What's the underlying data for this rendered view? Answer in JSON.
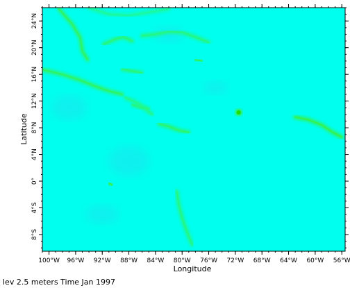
{
  "figure": {
    "xlabel": "Longitude",
    "ylabel": "Latitude",
    "caption": "lev 2.5 meters Time Jan 1997"
  },
  "chart_data": {
    "type": "heatmap",
    "xlabel": "Longitude",
    "ylabel": "Latitude",
    "xlim": [
      -101,
      -55.5
    ],
    "ylim": [
      -10.5,
      26
    ],
    "x_ticks": [
      {
        "value": -100,
        "label": "100°W"
      },
      {
        "value": -96,
        "label": "96°W"
      },
      {
        "value": -92,
        "label": "92°W"
      },
      {
        "value": -88,
        "label": "88°W"
      },
      {
        "value": -84,
        "label": "84°W"
      },
      {
        "value": -80,
        "label": "80°W"
      },
      {
        "value": -76,
        "label": "76°W"
      },
      {
        "value": -72,
        "label": "72°W"
      },
      {
        "value": -68,
        "label": "68°W"
      },
      {
        "value": -64,
        "label": "64°W"
      },
      {
        "value": -60,
        "label": "60°W"
      },
      {
        "value": -56,
        "label": "56°W"
      }
    ],
    "y_ticks": [
      {
        "value": -8,
        "label": "8°S"
      },
      {
        "value": -4,
        "label": "4°S"
      },
      {
        "value": 0,
        "label": "0°"
      },
      {
        "value": 4,
        "label": "4°N"
      },
      {
        "value": 8,
        "label": "8°N"
      },
      {
        "value": 12,
        "label": "12°N"
      },
      {
        "value": 16,
        "label": "16°N"
      },
      {
        "value": 20,
        "label": "20°N"
      },
      {
        "value": 24,
        "label": "24°N"
      }
    ],
    "colors": {
      "background": "#00ffee",
      "low": "#2ad7ee",
      "high": "#44ee22",
      "frame": "#000000"
    },
    "features": [
      {
        "name": "mexico-coast",
        "lon": [
          -98.5,
          -96.5,
          -95.3,
          -95.0,
          -94.2
        ],
        "lat": [
          25.8,
          23.5,
          21.5,
          19.5,
          18.2
        ],
        "intensity": 0.7
      },
      {
        "name": "yucatan-north",
        "lon": [
          -91.8,
          -90.0,
          -88.8,
          -87.5
        ],
        "lat": [
          20.5,
          21.3,
          21.6,
          21.0
        ],
        "intensity": 0.6
      },
      {
        "name": "cuba-jet",
        "lon": [
          -86.0,
          -84.0,
          -82.0,
          -80.0,
          -78.0,
          -76.0
        ],
        "lat": [
          21.8,
          22.0,
          22.4,
          22.3,
          21.6,
          20.8
        ],
        "intensity": 0.55
      },
      {
        "name": "gulf-current",
        "lon": [
          -94.0,
          -91.0,
          -88.0,
          -85.0,
          -82.0
        ],
        "lat": [
          26.0,
          25.0,
          24.8,
          25.3,
          25.8
        ],
        "intensity": 0.4
      },
      {
        "name": "honduras-shelf",
        "lon": [
          -89.0,
          -87.5,
          -86.0
        ],
        "lat": [
          16.8,
          16.5,
          16.2
        ],
        "intensity": 0.6
      },
      {
        "name": "pacific-tehuantepec",
        "lon": [
          -101.0,
          -98.0,
          -95.5,
          -93.0,
          -91.0,
          -89.0
        ],
        "lat": [
          16.7,
          16.0,
          15.2,
          14.2,
          13.5,
          13.0
        ],
        "intensity": 0.7
      },
      {
        "name": "nicaragua-coast",
        "lon": [
          -87.5,
          -86.0,
          -85.0
        ],
        "lat": [
          11.5,
          11.0,
          10.8
        ],
        "intensity": 0.6
      },
      {
        "name": "panama-bight",
        "lon": [
          -83.5,
          -82.0,
          -80.5,
          -79.0
        ],
        "lat": [
          8.6,
          8.2,
          7.6,
          7.3
        ],
        "intensity": 0.65
      },
      {
        "name": "jamaica-eddy",
        "lon": [
          -78.0,
          -77.0
        ],
        "lat": [
          18.2,
          18.0
        ],
        "intensity": 0.75
      },
      {
        "name": "hispaniola-spot",
        "lon": [
          -71.5
        ],
        "lat": [
          10.3
        ],
        "intensity": 0.95
      },
      {
        "name": "venezuela-coast",
        "lon": [
          -63.0,
          -61.0,
          -59.0,
          -57.5,
          -56.0
        ],
        "lat": [
          9.6,
          9.2,
          8.4,
          7.4,
          6.6
        ],
        "intensity": 0.8
      },
      {
        "name": "galapagos",
        "lon": [
          -91.0,
          -90.5
        ],
        "lat": [
          -0.3,
          -0.6
        ],
        "intensity": 0.8
      },
      {
        "name": "peru-upwelling",
        "lon": [
          -80.8,
          -80.5,
          -80.0,
          -79.3,
          -78.5
        ],
        "lat": [
          -1.5,
          -3.5,
          -5.5,
          -7.5,
          -9.5
        ],
        "intensity": 0.55
      },
      {
        "name": "central-america-pacific",
        "lon": [
          -88.5,
          -86.5,
          -84.5
        ],
        "lat": [
          12.5,
          11.6,
          10.0
        ],
        "intensity": 0.5
      }
    ],
    "grid": false,
    "legend": "none"
  }
}
